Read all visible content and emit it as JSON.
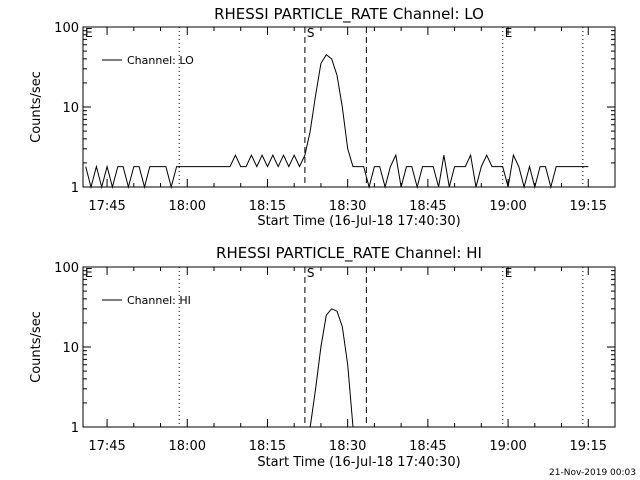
{
  "footer": {
    "timestamp": "21-Nov-2019 00:03"
  },
  "chart_data": [
    {
      "type": "line",
      "title": "RHESSI PARTICLE_RATE Channel: LO",
      "xlabel": "Start Time (16-Jul-18 17:40:30)",
      "ylabel": "Counts/sec",
      "yscale": "log",
      "ylim": [
        1,
        100
      ],
      "xlim": [
        "17:40:30",
        "19:20:00"
      ],
      "x_ticks": [
        "17:45",
        "18:00",
        "18:15",
        "18:30",
        "18:45",
        "19:00",
        "19:15"
      ],
      "y_ticks": [
        "1",
        "10",
        "100"
      ],
      "legend": {
        "entries": [
          "Channel: LO"
        ],
        "position": "top-left"
      },
      "markers": [
        {
          "label": "E",
          "time": "17:40:30",
          "style": "none"
        },
        {
          "label": "",
          "time": "17:58:30",
          "style": "dotted"
        },
        {
          "label": "S",
          "time": "18:22:00",
          "style": "dashed"
        },
        {
          "label": "",
          "time": "18:33:30",
          "style": "dashed"
        },
        {
          "label": "E",
          "time": "18:59:00",
          "style": "dotted"
        },
        {
          "label": "",
          "time": "19:14:00",
          "style": "dotted"
        }
      ],
      "series": [
        {
          "name": "Channel: LO",
          "x": [
            "17:41:00",
            "17:42:00",
            "17:43:00",
            "17:44:00",
            "17:45:00",
            "17:46:00",
            "17:47:00",
            "17:48:00",
            "17:49:00",
            "17:50:00",
            "17:51:00",
            "17:52:00",
            "17:53:00",
            "17:54:00",
            "17:55:00",
            "17:56:00",
            "17:57:00",
            "17:58:00",
            "17:59:00",
            "18:00:00",
            "18:02:00",
            "18:04:00",
            "18:06:00",
            "18:07:00",
            "18:08:00",
            "18:09:00",
            "18:10:00",
            "18:11:00",
            "18:12:00",
            "18:13:00",
            "18:14:00",
            "18:15:00",
            "18:16:00",
            "18:17:00",
            "18:18:00",
            "18:19:00",
            "18:20:00",
            "18:21:00",
            "18:22:00",
            "18:23:00",
            "18:24:00",
            "18:25:00",
            "18:26:00",
            "18:27:00",
            "18:28:00",
            "18:29:00",
            "18:30:00",
            "18:31:00",
            "18:32:00",
            "18:33:00",
            "18:34:00",
            "18:35:00",
            "18:36:00",
            "18:37:00",
            "18:38:00",
            "18:39:00",
            "18:40:00",
            "18:41:00",
            "18:42:00",
            "18:43:00",
            "18:44:00",
            "18:45:00",
            "18:46:00",
            "18:47:00",
            "18:48:00",
            "18:49:00",
            "18:50:00",
            "18:51:00",
            "18:52:00",
            "18:53:00",
            "18:54:00",
            "18:55:00",
            "18:56:00",
            "18:57:00",
            "18:58:00",
            "18:59:00",
            "19:00:00",
            "19:01:00",
            "19:02:00",
            "19:03:00",
            "19:04:00",
            "19:05:00",
            "19:06:00",
            "19:07:00",
            "19:08:00",
            "19:09:00",
            "19:10:00",
            "19:11:00",
            "19:12:00",
            "19:13:00",
            "19:14:00",
            "19:15:00"
          ],
          "y": [
            1.8,
            1,
            1.8,
            1,
            1.8,
            1,
            1.8,
            1.8,
            1,
            1.8,
            1.8,
            1,
            1.8,
            1.8,
            1.8,
            1.8,
            1,
            1.8,
            1.8,
            1.8,
            1.8,
            1.8,
            1.8,
            1.8,
            1.8,
            2.5,
            1.8,
            1.8,
            2.5,
            1.8,
            2.5,
            1.8,
            2.5,
            1.8,
            2.5,
            1.8,
            2.5,
            1.8,
            2.5,
            5,
            14,
            35,
            45,
            40,
            25,
            10,
            3,
            1.8,
            1.8,
            1.8,
            1,
            1.8,
            1.8,
            1,
            1.8,
            2.5,
            1,
            1.8,
            1.8,
            1,
            1.8,
            1.8,
            1.8,
            1,
            2.5,
            1,
            1.8,
            1.8,
            1.8,
            2.5,
            1,
            1.8,
            2.5,
            1.8,
            1.8,
            1.8,
            1,
            2.5,
            1.8,
            1,
            1.8,
            1,
            1.8,
            1.8,
            1,
            1.8,
            1.8,
            1.8,
            1.8,
            1.8,
            1.8,
            1.8
          ]
        }
      ]
    },
    {
      "type": "line",
      "title": "RHESSI PARTICLE_RATE Channel: HI",
      "xlabel": "Start Time (16-Jul-18 17:40:30)",
      "ylabel": "Counts/sec",
      "yscale": "log",
      "ylim": [
        1,
        100
      ],
      "xlim": [
        "17:40:30",
        "19:20:00"
      ],
      "x_ticks": [
        "17:45",
        "18:00",
        "18:15",
        "18:30",
        "18:45",
        "19:00",
        "19:15"
      ],
      "y_ticks": [
        "1",
        "10",
        "100"
      ],
      "legend": {
        "entries": [
          "Channel: HI"
        ],
        "position": "top-left"
      },
      "markers": [
        {
          "label": "E",
          "time": "17:40:30",
          "style": "none"
        },
        {
          "label": "",
          "time": "17:58:30",
          "style": "dotted"
        },
        {
          "label": "S",
          "time": "18:22:00",
          "style": "dashed"
        },
        {
          "label": "",
          "time": "18:33:30",
          "style": "dashed"
        },
        {
          "label": "E",
          "time": "18:59:00",
          "style": "dotted"
        },
        {
          "label": "",
          "time": "19:14:00",
          "style": "dotted"
        }
      ],
      "series": [
        {
          "name": "Channel: HI",
          "x": [
            "18:23:00",
            "18:24:00",
            "18:25:00",
            "18:26:00",
            "18:27:00",
            "18:28:00",
            "18:29:00",
            "18:30:00",
            "18:31:00"
          ],
          "y": [
            1,
            3,
            10,
            25,
            30,
            28,
            18,
            6,
            1
          ]
        }
      ]
    }
  ]
}
